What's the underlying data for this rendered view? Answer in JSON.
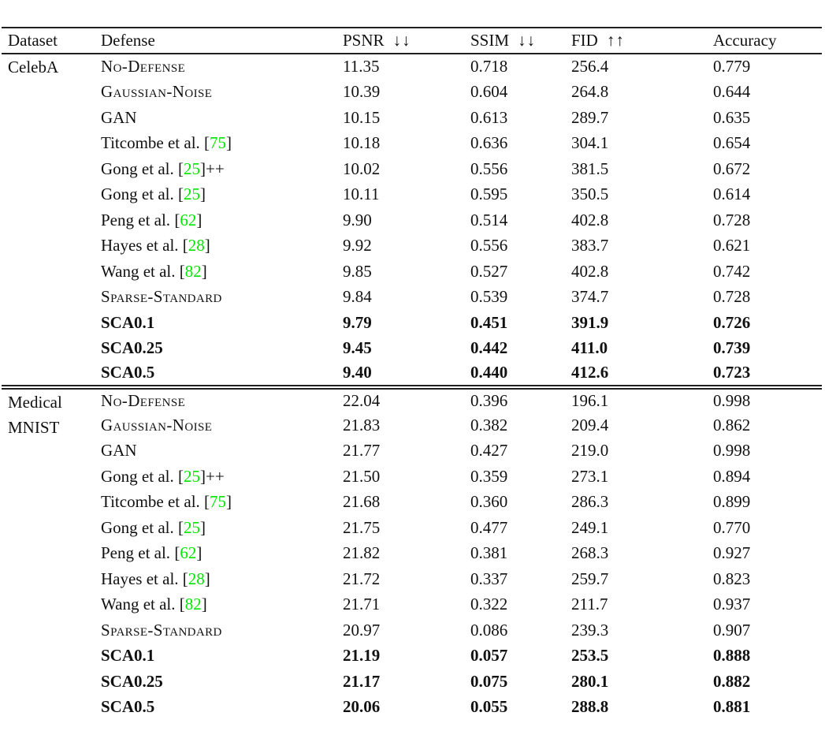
{
  "page": {
    "background": "#ffffff",
    "text_color": "#111111",
    "rule_color": "#1f1f1f",
    "citation_color": "#00e600"
  },
  "table": {
    "columns": [
      {
        "key": "dataset",
        "label": "Dataset",
        "arrow": ""
      },
      {
        "key": "defense",
        "label": "Defense",
        "arrow": ""
      },
      {
        "key": "psnr",
        "label": "PSNR",
        "arrow": "↓↓"
      },
      {
        "key": "ssim",
        "label": "SSIM",
        "arrow": "↓↓"
      },
      {
        "key": "fid",
        "label": "FID",
        "arrow": "↑↑"
      },
      {
        "key": "accuracy",
        "label": "Accuracy",
        "arrow": ""
      }
    ],
    "sections": [
      {
        "id": "celeba",
        "dataset_lines": [
          "CelebA"
        ],
        "rows": [
          {
            "defense": {
              "pre": "No-Defense"
            },
            "smallcaps": true,
            "bold": false,
            "values": [
              "11.35",
              "0.718",
              "256.4",
              "0.779"
            ]
          },
          {
            "defense": {
              "pre": "Gaussian-Noise"
            },
            "smallcaps": true,
            "bold": false,
            "values": [
              "10.39",
              "0.604",
              "264.8",
              "0.644"
            ]
          },
          {
            "defense": {
              "pre": "GAN"
            },
            "smallcaps": false,
            "bold": false,
            "values": [
              "10.15",
              "0.613",
              "289.7",
              "0.635"
            ]
          },
          {
            "defense": {
              "pre": "Titcombe et al. ",
              "cite": "75",
              "post": ""
            },
            "smallcaps": false,
            "bold": false,
            "values": [
              "10.18",
              "0.636",
              "304.1",
              "0.654"
            ]
          },
          {
            "defense": {
              "pre": "Gong et al. ",
              "cite": "25",
              "post": "++"
            },
            "smallcaps": false,
            "bold": false,
            "values": [
              "10.02",
              "0.556",
              "381.5",
              "0.672"
            ]
          },
          {
            "defense": {
              "pre": "Gong et al. ",
              "cite": "25",
              "post": ""
            },
            "smallcaps": false,
            "bold": false,
            "values": [
              "10.11",
              "0.595",
              "350.5",
              "0.614"
            ]
          },
          {
            "defense": {
              "pre": "Peng et al. ",
              "cite": "62",
              "post": ""
            },
            "smallcaps": false,
            "bold": false,
            "values": [
              "9.90",
              "0.514",
              "402.8",
              "0.728"
            ]
          },
          {
            "defense": {
              "pre": "Hayes et al. ",
              "cite": "28",
              "post": ""
            },
            "smallcaps": false,
            "bold": false,
            "values": [
              "9.92",
              "0.556",
              "383.7",
              "0.621"
            ]
          },
          {
            "defense": {
              "pre": "Wang et al. ",
              "cite": "82",
              "post": ""
            },
            "smallcaps": false,
            "bold": false,
            "values": [
              "9.85",
              "0.527",
              "402.8",
              "0.742"
            ]
          },
          {
            "defense": {
              "pre": "Sparse-Standard"
            },
            "smallcaps": true,
            "bold": false,
            "values": [
              "9.84",
              "0.539",
              "374.7",
              "0.728"
            ]
          },
          {
            "defense": {
              "pre": "SCA0.1"
            },
            "smallcaps": false,
            "bold": true,
            "values": [
              "9.79",
              "0.451",
              "391.9",
              "0.726"
            ]
          },
          {
            "defense": {
              "pre": "SCA0.25"
            },
            "smallcaps": false,
            "bold": true,
            "values": [
              "9.45",
              "0.442",
              "411.0",
              "0.739"
            ]
          },
          {
            "defense": {
              "pre": "SCA0.5"
            },
            "smallcaps": false,
            "bold": true,
            "values": [
              "9.40",
              "0.440",
              "412.6",
              "0.723"
            ]
          }
        ]
      },
      {
        "id": "medical-mnist",
        "dataset_lines": [
          "Medical",
          "MNIST"
        ],
        "rows": [
          {
            "defense": {
              "pre": "No-Defense"
            },
            "smallcaps": true,
            "bold": false,
            "values": [
              "22.04",
              "0.396",
              "196.1",
              "0.998"
            ]
          },
          {
            "defense": {
              "pre": "Gaussian-Noise"
            },
            "smallcaps": true,
            "bold": false,
            "values": [
              "21.83",
              "0.382",
              "209.4",
              "0.862"
            ]
          },
          {
            "defense": {
              "pre": "GAN"
            },
            "smallcaps": false,
            "bold": false,
            "values": [
              "21.77",
              "0.427",
              "219.0",
              "0.998"
            ]
          },
          {
            "defense": {
              "pre": "Gong et al. ",
              "cite": "25",
              "post": "++"
            },
            "smallcaps": false,
            "bold": false,
            "values": [
              "21.50",
              "0.359",
              "273.1",
              "0.894"
            ]
          },
          {
            "defense": {
              "pre": "Titcombe et al. ",
              "cite": "75",
              "post": ""
            },
            "smallcaps": false,
            "bold": false,
            "values": [
              "21.68",
              "0.360",
              "286.3",
              "0.899"
            ]
          },
          {
            "defense": {
              "pre": "Gong et al. ",
              "cite": "25",
              "post": ""
            },
            "smallcaps": false,
            "bold": false,
            "values": [
              "21.75",
              "0.477",
              "249.1",
              "0.770"
            ]
          },
          {
            "defense": {
              "pre": "Peng et al. ",
              "cite": "62",
              "post": ""
            },
            "smallcaps": false,
            "bold": false,
            "values": [
              "21.82",
              "0.381",
              "268.3",
              "0.927"
            ]
          },
          {
            "defense": {
              "pre": "Hayes et al. ",
              "cite": "28",
              "post": ""
            },
            "smallcaps": false,
            "bold": false,
            "values": [
              "21.72",
              "0.337",
              "259.7",
              "0.823"
            ]
          },
          {
            "defense": {
              "pre": "Wang et al. ",
              "cite": "82",
              "post": ""
            },
            "smallcaps": false,
            "bold": false,
            "values": [
              "21.71",
              "0.322",
              "211.7",
              "0.937"
            ]
          },
          {
            "defense": {
              "pre": "Sparse-Standard"
            },
            "smallcaps": true,
            "bold": false,
            "values": [
              "20.97",
              "0.086",
              "239.3",
              "0.907"
            ]
          },
          {
            "defense": {
              "pre": "SCA0.1"
            },
            "smallcaps": false,
            "bold": true,
            "values": [
              "21.19",
              "0.057",
              "253.5",
              "0.888"
            ]
          },
          {
            "defense": {
              "pre": "SCA0.25"
            },
            "smallcaps": false,
            "bold": true,
            "values": [
              "21.17",
              "0.075",
              "280.1",
              "0.882"
            ]
          },
          {
            "defense": {
              "pre": "SCA0.5"
            },
            "smallcaps": false,
            "bold": true,
            "values": [
              "20.06",
              "0.055",
              "288.8",
              "0.881"
            ]
          }
        ]
      }
    ]
  }
}
